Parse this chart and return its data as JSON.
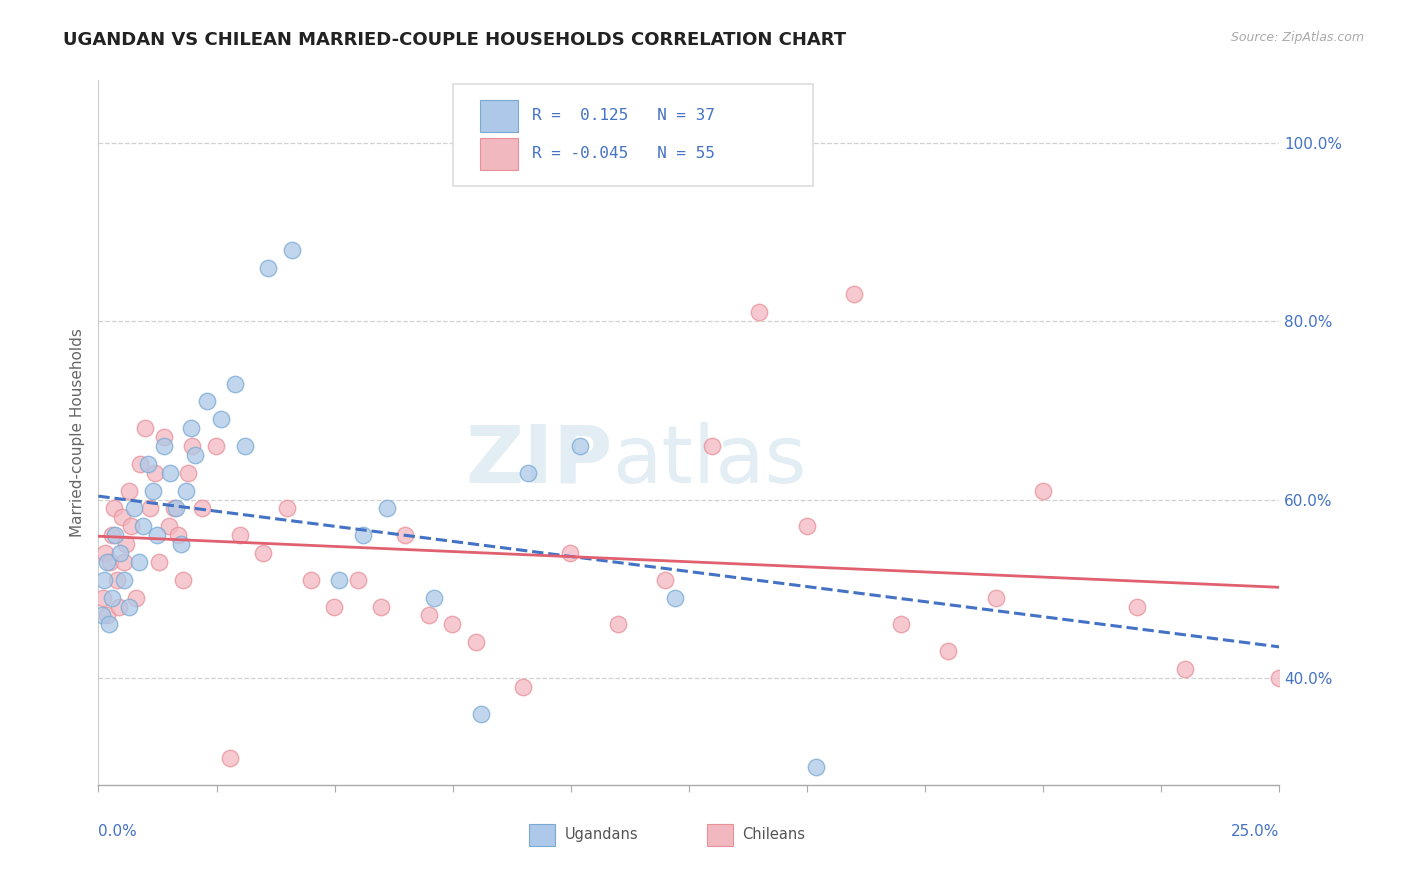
{
  "title": "UGANDAN VS CHILEAN MARRIED-COUPLE HOUSEHOLDS CORRELATION CHART",
  "source_text": "Source: ZipAtlas.com",
  "ylabel": "Married-couple Households",
  "xlim": [
    0.0,
    25.0
  ],
  "ylim": [
    28.0,
    107.0
  ],
  "legend_r": [
    0.125,
    -0.045
  ],
  "legend_n": [
    37,
    55
  ],
  "blue_dot_color": "#adc8e8",
  "blue_edge_color": "#7aaad4",
  "blue_line_color": "#4472c4",
  "pink_dot_color": "#f2b8c0",
  "pink_edge_color": "#e8909a",
  "pink_line_color": "#e06070",
  "label_color": "#4472c4",
  "grid_color": "#cccccc",
  "background_color": "#ffffff",
  "ugandan_x": [
    0.08,
    0.12,
    0.18,
    0.22,
    0.28,
    0.35,
    0.45,
    0.55,
    0.65,
    0.75,
    0.85,
    0.95,
    1.05,
    1.15,
    1.25,
    1.38,
    1.52,
    1.65,
    1.75,
    1.85,
    1.95,
    2.05,
    2.3,
    2.6,
    2.9,
    3.1,
    3.6,
    4.1,
    5.1,
    5.6,
    6.1,
    7.1,
    8.1,
    9.1,
    10.2,
    12.2,
    15.2
  ],
  "ugandan_y": [
    47,
    51,
    53,
    46,
    49,
    56,
    54,
    51,
    48,
    59,
    53,
    57,
    64,
    61,
    56,
    66,
    63,
    59,
    55,
    61,
    68,
    65,
    71,
    69,
    73,
    66,
    86,
    88,
    51,
    56,
    59,
    49,
    36,
    63,
    66,
    49,
    30
  ],
  "chilean_x": [
    0.09,
    0.14,
    0.19,
    0.24,
    0.29,
    0.34,
    0.39,
    0.44,
    0.49,
    0.54,
    0.59,
    0.64,
    0.69,
    0.79,
    0.89,
    0.99,
    1.09,
    1.19,
    1.29,
    1.39,
    1.49,
    1.59,
    1.69,
    1.79,
    1.89,
    1.99,
    2.19,
    2.49,
    2.79,
    2.99,
    3.49,
    3.99,
    4.49,
    4.99,
    5.49,
    5.99,
    6.49,
    6.99,
    7.49,
    7.99,
    8.99,
    9.99,
    10.99,
    11.99,
    12.99,
    13.99,
    14.99,
    15.99,
    16.99,
    17.99,
    18.99,
    19.99,
    21.99,
    22.99,
    24.99
  ],
  "chilean_y": [
    49,
    54,
    47,
    53,
    56,
    59,
    51,
    48,
    58,
    53,
    55,
    61,
    57,
    49,
    64,
    68,
    59,
    63,
    53,
    67,
    57,
    59,
    56,
    51,
    63,
    66,
    59,
    66,
    31,
    56,
    54,
    59,
    51,
    48,
    51,
    48,
    56,
    47,
    46,
    44,
    39,
    54,
    46,
    51,
    66,
    81,
    57,
    83,
    46,
    43,
    49,
    61,
    48,
    41,
    40
  ],
  "watermark_zip": "ZIP",
  "watermark_atlas": "atlas",
  "yticks": [
    40,
    60,
    80,
    100
  ],
  "xtick_positions": [
    0.0,
    2.5,
    5.0,
    7.5,
    10.0,
    12.5,
    15.0,
    17.5,
    20.0,
    22.5,
    25.0
  ]
}
